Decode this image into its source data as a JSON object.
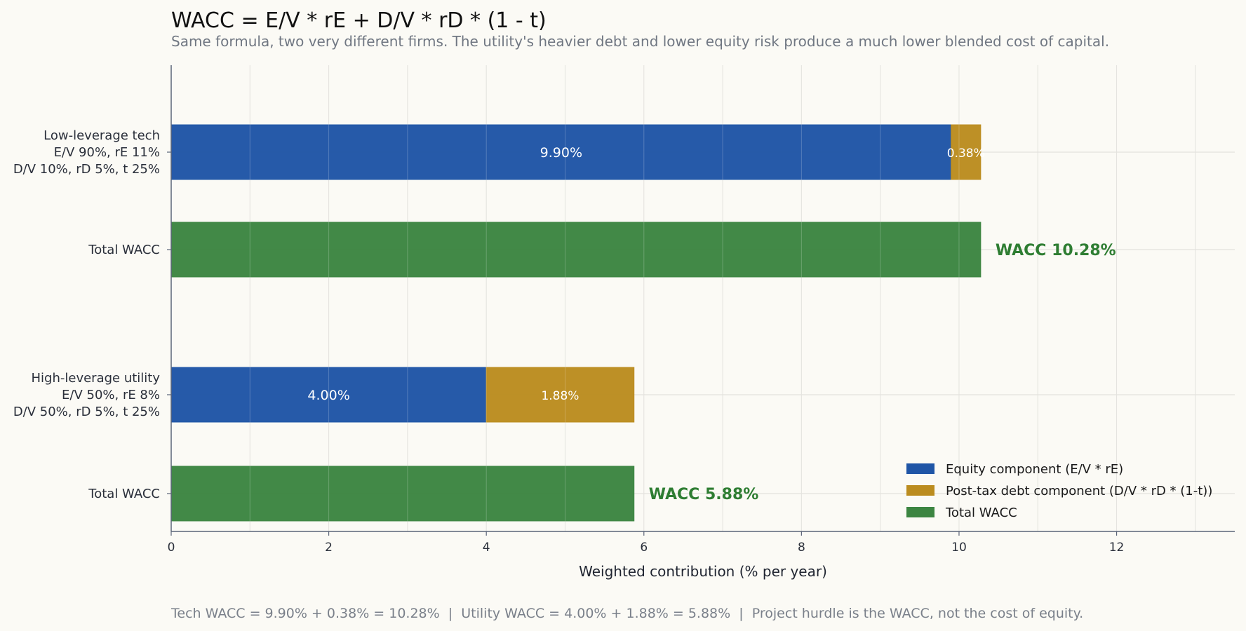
{
  "chart_data": {
    "type": "bar",
    "orientation": "horizontal",
    "stacked": true,
    "title": "WACC = E/V * rE + D/V * rD * (1 - t)",
    "subtitle": "Same formula, two very different firms. The utility's heavier debt and lower equity risk produce a much lower blended cost of capital.",
    "xlabel": "Weighted contribution (% per year)",
    "xlim": [
      0,
      13.5
    ],
    "xticks": [
      "0",
      "2",
      "4",
      "6",
      "8",
      "10",
      "12"
    ],
    "grid": true,
    "legend_position": "bottom-right",
    "categories": [
      [
        "Low-leverage tech",
        "E/V 90%, rE 11%",
        "D/V 10%, rD 5%, t 25%"
      ],
      [
        "Total WACC"
      ],
      [
        "High-leverage utility",
        "E/V 50%, rE 8%",
        "D/V 50%, rD 5%, t 25%"
      ],
      [
        "Total WACC"
      ]
    ],
    "series": [
      {
        "name": "Equity component (E/V * rE)",
        "color": "#1f55a6",
        "values": [
          9.9,
          null,
          4.0,
          null
        ],
        "labels": [
          "9.90%",
          "",
          "4.00%",
          ""
        ]
      },
      {
        "name": "Post-tax debt component (D/V * rD * (1-t))",
        "color": "#bb8c1f",
        "values": [
          0.375,
          null,
          1.875,
          null
        ],
        "labels": [
          "0.38%",
          "",
          "1.88%",
          ""
        ]
      },
      {
        "name": "Total WACC",
        "color": "#3c8541",
        "values": [
          null,
          10.275,
          null,
          5.875
        ],
        "labels": [
          "",
          "WACC 10.28%",
          "",
          "WACC 5.88%"
        ]
      }
    ],
    "total_label_color": "#2e7d32"
  },
  "footer": "Tech WACC = 9.90% + 0.38% = 10.28%  |  Utility WACC = 4.00% + 1.88% = 5.88%  |  Project hurdle is the WACC, not the cost of equity."
}
